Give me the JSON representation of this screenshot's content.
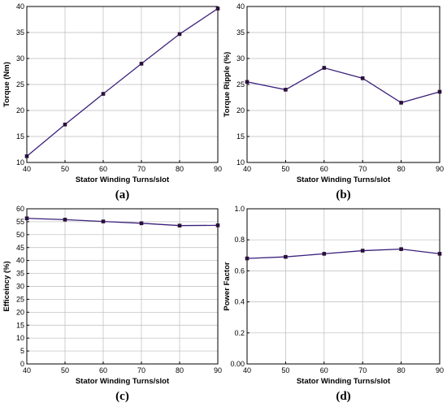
{
  "chart_data": [
    {
      "type": "line",
      "panel_label": "(a)",
      "xlabel": "Stator Winding Turns/slot",
      "ylabel": "Torque (Nm)",
      "xlim": [
        40,
        90
      ],
      "ylim": [
        10,
        40
      ],
      "xticks": [
        40,
        50,
        60,
        70,
        80,
        90
      ],
      "yticks": [
        10,
        15,
        20,
        25,
        30,
        35,
        40
      ],
      "grid": true,
      "series": [
        {
          "x": [
            40,
            50,
            60,
            70,
            80,
            90
          ],
          "y": [
            11.2,
            17.3,
            23.2,
            29.0,
            34.7,
            39.6
          ]
        }
      ]
    },
    {
      "type": "line",
      "panel_label": "(b)",
      "xlabel": "Stator Winding Turns/slot",
      "ylabel": "Torque Ripple (%)",
      "xlim": [
        40,
        90
      ],
      "ylim": [
        10,
        40
      ],
      "xticks": [
        40,
        50,
        60,
        70,
        80,
        90
      ],
      "yticks": [
        10,
        15,
        20,
        25,
        30,
        35,
        40
      ],
      "grid": true,
      "series": [
        {
          "x": [
            40,
            50,
            60,
            70,
            80,
            90
          ],
          "y": [
            25.5,
            24.0,
            28.2,
            26.2,
            21.5,
            23.6
          ]
        }
      ]
    },
    {
      "type": "line",
      "panel_label": "(c)",
      "xlabel": "Stator Winding Turns/slot",
      "ylabel": "Efficeincy (%)",
      "xlim": [
        40,
        90
      ],
      "ylim": [
        0,
        60
      ],
      "xticks": [
        40,
        50,
        60,
        70,
        80,
        90
      ],
      "yticks": [
        0,
        5,
        10,
        15,
        20,
        25,
        30,
        35,
        40,
        45,
        50,
        55,
        60
      ],
      "grid": true,
      "series": [
        {
          "x": [
            40,
            50,
            60,
            70,
            80,
            90
          ],
          "y": [
            56.3,
            55.8,
            55.1,
            54.4,
            53.5,
            53.6
          ]
        }
      ]
    },
    {
      "type": "line",
      "panel_label": "(d)",
      "xlabel": "Stator Winding Turns/slot",
      "ylabel": "Power Factor",
      "xlim": [
        40,
        90
      ],
      "ylim": [
        0,
        1.0
      ],
      "xticks": [
        40,
        50,
        60,
        70,
        80,
        90
      ],
      "yticks": [
        "0.00",
        "0.2",
        "0.4",
        "0.6",
        "0.8",
        "1.0"
      ],
      "grid": true,
      "series": [
        {
          "x": [
            40,
            50,
            60,
            70,
            80,
            90
          ],
          "y": [
            0.68,
            0.69,
            0.71,
            0.73,
            0.74,
            0.71
          ]
        }
      ]
    }
  ]
}
